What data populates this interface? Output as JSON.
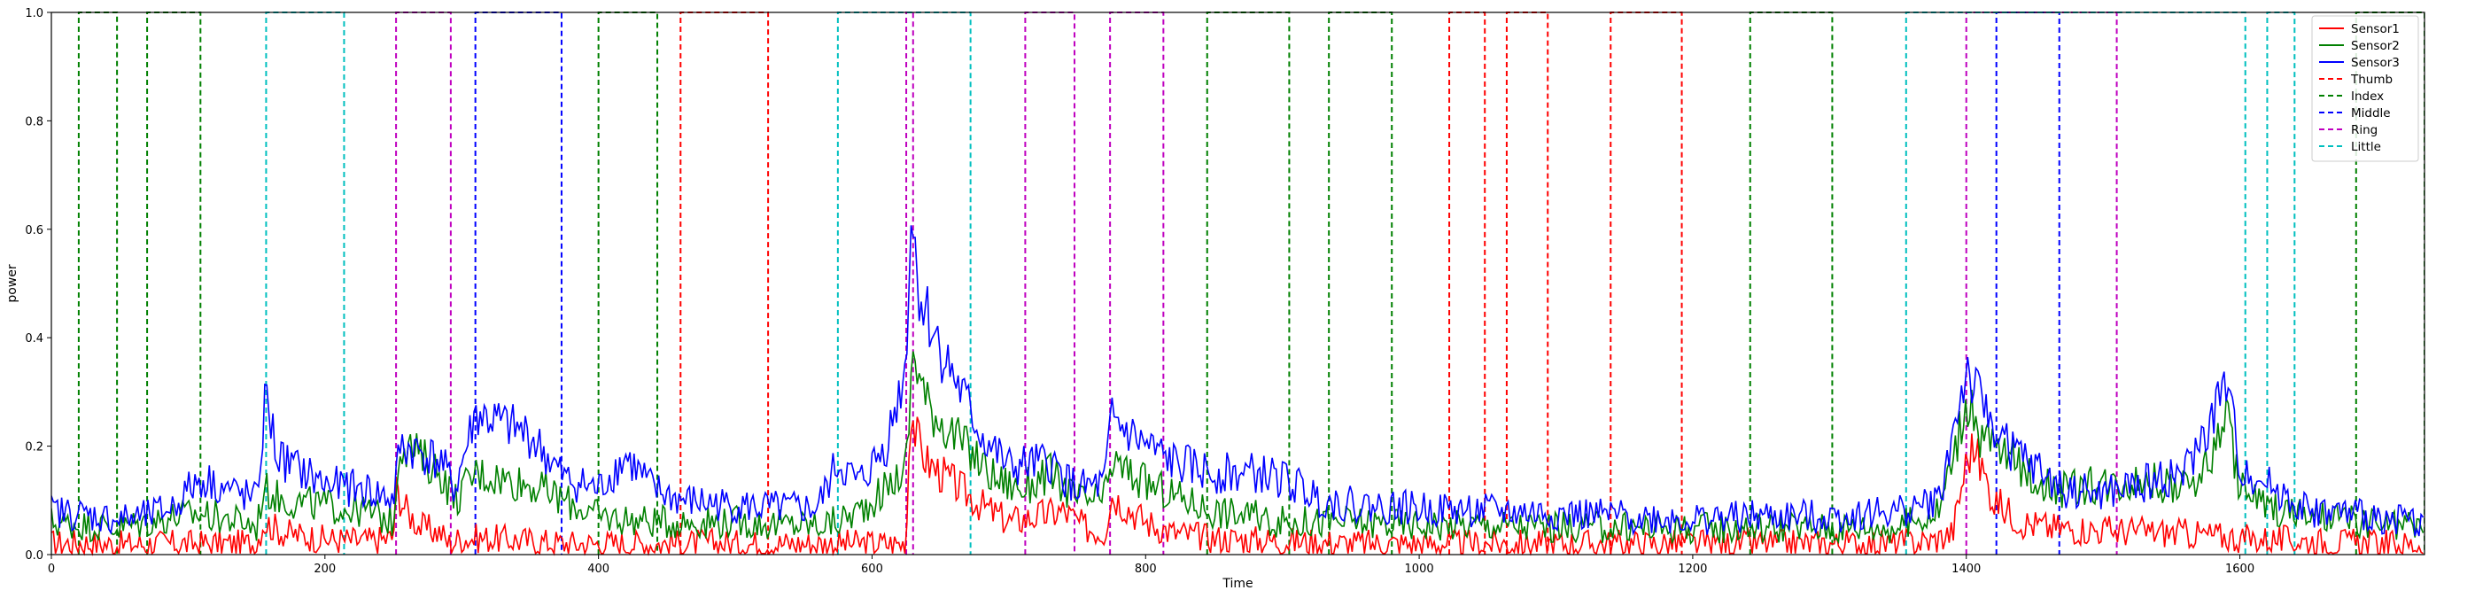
{
  "chart_data": {
    "type": "line",
    "title": "",
    "xlabel": "Time",
    "ylabel": "power",
    "xlim": [
      0,
      1735
    ],
    "ylim": [
      0,
      1.0
    ],
    "xticks": [
      0,
      200,
      400,
      600,
      800,
      1000,
      1200,
      1400,
      1600
    ],
    "yticks": [
      0.0,
      0.2,
      0.4,
      0.6,
      0.8,
      1.0
    ],
    "xtick_labels": [
      "0",
      "200",
      "400",
      "600",
      "800",
      "1000",
      "1200",
      "1400",
      "1600"
    ],
    "ytick_labels": [
      "0.0",
      "0.2",
      "0.4",
      "0.6",
      "0.8",
      "1.0"
    ],
    "grid": false,
    "legend_position": "top-right",
    "colors": {
      "Sensor1": "#ff0000",
      "Sensor2": "#008000",
      "Sensor3": "#0000ff",
      "Thumb": "#ff0000",
      "Index": "#008000",
      "Middle": "#0000ff",
      "Ring": "#bf00bf",
      "Little": "#00bfbf"
    },
    "sensor_series": [
      {
        "name": "Sensor1",
        "points": [
          [
            0,
            0.02
          ],
          [
            20,
            0.022
          ],
          [
            50,
            0.018
          ],
          [
            70,
            0.02
          ],
          [
            100,
            0.02
          ],
          [
            150,
            0.02
          ],
          [
            155,
            0.06
          ],
          [
            170,
            0.04
          ],
          [
            200,
            0.028
          ],
          [
            230,
            0.025
          ],
          [
            250,
            0.03
          ],
          [
            252,
            0.12
          ],
          [
            260,
            0.08
          ],
          [
            270,
            0.05
          ],
          [
            285,
            0.04
          ],
          [
            290,
            0.02
          ],
          [
            300,
            0.03
          ],
          [
            320,
            0.03
          ],
          [
            350,
            0.025
          ],
          [
            380,
            0.02
          ],
          [
            400,
            0.02
          ],
          [
            430,
            0.02
          ],
          [
            460,
            0.02
          ],
          [
            480,
            0.022
          ],
          [
            500,
            0.02
          ],
          [
            520,
            0.02
          ],
          [
            560,
            0.02
          ],
          [
            575,
            0.02
          ],
          [
            600,
            0.02
          ],
          [
            625,
            0.02
          ],
          [
            628,
            0.28
          ],
          [
            632,
            0.22
          ],
          [
            640,
            0.17
          ],
          [
            660,
            0.13
          ],
          [
            680,
            0.09
          ],
          [
            700,
            0.06
          ],
          [
            720,
            0.07
          ],
          [
            740,
            0.08
          ],
          [
            755,
            0.05
          ],
          [
            770,
            0.04
          ],
          [
            775,
            0.11
          ],
          [
            800,
            0.06
          ],
          [
            820,
            0.04
          ],
          [
            850,
            0.03
          ],
          [
            900,
            0.025
          ],
          [
            950,
            0.02
          ],
          [
            1000,
            0.02
          ],
          [
            1050,
            0.02
          ],
          [
            1100,
            0.02
          ],
          [
            1150,
            0.02
          ],
          [
            1200,
            0.02
          ],
          [
            1250,
            0.02
          ],
          [
            1300,
            0.02
          ],
          [
            1350,
            0.02
          ],
          [
            1375,
            0.025
          ],
          [
            1390,
            0.04
          ],
          [
            1400,
            0.17
          ],
          [
            1405,
            0.2
          ],
          [
            1420,
            0.1
          ],
          [
            1440,
            0.06
          ],
          [
            1460,
            0.05
          ],
          [
            1500,
            0.045
          ],
          [
            1550,
            0.04
          ],
          [
            1580,
            0.035
          ],
          [
            1600,
            0.03
          ],
          [
            1650,
            0.025
          ],
          [
            1700,
            0.02
          ],
          [
            1735,
            0.018
          ]
        ]
      },
      {
        "name": "Sensor2",
        "points": [
          [
            0,
            0.06
          ],
          [
            20,
            0.055
          ],
          [
            50,
            0.05
          ],
          [
            70,
            0.06
          ],
          [
            90,
            0.07
          ],
          [
            110,
            0.075
          ],
          [
            140,
            0.06
          ],
          [
            150,
            0.05
          ],
          [
            155,
            0.12
          ],
          [
            170,
            0.1
          ],
          [
            200,
            0.09
          ],
          [
            230,
            0.08
          ],
          [
            250,
            0.06
          ],
          [
            255,
            0.21
          ],
          [
            270,
            0.18
          ],
          [
            285,
            0.15
          ],
          [
            295,
            0.1
          ],
          [
            310,
            0.15
          ],
          [
            330,
            0.14
          ],
          [
            350,
            0.13
          ],
          [
            375,
            0.1
          ],
          [
            400,
            0.07
          ],
          [
            420,
            0.065
          ],
          [
            440,
            0.06
          ],
          [
            460,
            0.06
          ],
          [
            500,
            0.06
          ],
          [
            530,
            0.055
          ],
          [
            560,
            0.055
          ],
          [
            575,
            0.06
          ],
          [
            590,
            0.08
          ],
          [
            610,
            0.12
          ],
          [
            625,
            0.16
          ],
          [
            630,
            0.38
          ],
          [
            640,
            0.28
          ],
          [
            660,
            0.22
          ],
          [
            675,
            0.18
          ],
          [
            690,
            0.14
          ],
          [
            710,
            0.12
          ],
          [
            730,
            0.15
          ],
          [
            750,
            0.1
          ],
          [
            770,
            0.1
          ],
          [
            775,
            0.17
          ],
          [
            800,
            0.13
          ],
          [
            820,
            0.11
          ],
          [
            850,
            0.08
          ],
          [
            880,
            0.07
          ],
          [
            900,
            0.06
          ],
          [
            950,
            0.06
          ],
          [
            1000,
            0.055
          ],
          [
            1050,
            0.055
          ],
          [
            1100,
            0.05
          ],
          [
            1150,
            0.05
          ],
          [
            1200,
            0.05
          ],
          [
            1250,
            0.05
          ],
          [
            1300,
            0.05
          ],
          [
            1350,
            0.05
          ],
          [
            1380,
            0.08
          ],
          [
            1400,
            0.28
          ],
          [
            1410,
            0.22
          ],
          [
            1430,
            0.18
          ],
          [
            1450,
            0.14
          ],
          [
            1470,
            0.12
          ],
          [
            1500,
            0.13
          ],
          [
            1530,
            0.14
          ],
          [
            1560,
            0.12
          ],
          [
            1580,
            0.18
          ],
          [
            1590,
            0.27
          ],
          [
            1600,
            0.12
          ],
          [
            1620,
            0.09
          ],
          [
            1650,
            0.07
          ],
          [
            1700,
            0.055
          ],
          [
            1735,
            0.05
          ]
        ]
      },
      {
        "name": "Sensor3",
        "points": [
          [
            0,
            0.08
          ],
          [
            20,
            0.075
          ],
          [
            50,
            0.065
          ],
          [
            70,
            0.07
          ],
          [
            90,
            0.09
          ],
          [
            100,
            0.12
          ],
          [
            110,
            0.14
          ],
          [
            130,
            0.12
          ],
          [
            150,
            0.1
          ],
          [
            157,
            0.3
          ],
          [
            165,
            0.18
          ],
          [
            200,
            0.13
          ],
          [
            230,
            0.12
          ],
          [
            250,
            0.1
          ],
          [
            255,
            0.2
          ],
          [
            270,
            0.19
          ],
          [
            285,
            0.17
          ],
          [
            295,
            0.12
          ],
          [
            310,
            0.26
          ],
          [
            330,
            0.24
          ],
          [
            350,
            0.22
          ],
          [
            375,
            0.14
          ],
          [
            400,
            0.12
          ],
          [
            420,
            0.18
          ],
          [
            440,
            0.12
          ],
          [
            460,
            0.1
          ],
          [
            500,
            0.09
          ],
          [
            530,
            0.085
          ],
          [
            560,
            0.085
          ],
          [
            575,
            0.17
          ],
          [
            590,
            0.13
          ],
          [
            610,
            0.2
          ],
          [
            625,
            0.35
          ],
          [
            628,
            0.64
          ],
          [
            635,
            0.48
          ],
          [
            650,
            0.38
          ],
          [
            665,
            0.3
          ],
          [
            680,
            0.22
          ],
          [
            700,
            0.16
          ],
          [
            730,
            0.17
          ],
          [
            750,
            0.12
          ],
          [
            770,
            0.13
          ],
          [
            775,
            0.25
          ],
          [
            800,
            0.2
          ],
          [
            820,
            0.17
          ],
          [
            850,
            0.15
          ],
          [
            880,
            0.15
          ],
          [
            900,
            0.14
          ],
          [
            930,
            0.1
          ],
          [
            960,
            0.09
          ],
          [
            1000,
            0.085
          ],
          [
            1050,
            0.08
          ],
          [
            1100,
            0.075
          ],
          [
            1150,
            0.07
          ],
          [
            1200,
            0.065
          ],
          [
            1250,
            0.07
          ],
          [
            1300,
            0.07
          ],
          [
            1350,
            0.08
          ],
          [
            1380,
            0.1
          ],
          [
            1400,
            0.34
          ],
          [
            1410,
            0.28
          ],
          [
            1430,
            0.2
          ],
          [
            1450,
            0.16
          ],
          [
            1470,
            0.12
          ],
          [
            1500,
            0.11
          ],
          [
            1530,
            0.13
          ],
          [
            1560,
            0.15
          ],
          [
            1580,
            0.25
          ],
          [
            1590,
            0.32
          ],
          [
            1600,
            0.16
          ],
          [
            1620,
            0.13
          ],
          [
            1650,
            0.08
          ],
          [
            1700,
            0.07
          ],
          [
            1735,
            0.06
          ]
        ]
      }
    ],
    "finger_series": [
      {
        "name": "Thumb",
        "intervals": [
          [
            460,
            524
          ],
          [
            1022,
            1048
          ],
          [
            1064,
            1094
          ],
          [
            1140,
            1192
          ]
        ]
      },
      {
        "name": "Index",
        "intervals": [
          [
            20,
            48
          ],
          [
            70,
            109
          ],
          [
            400,
            443
          ],
          [
            845,
            905
          ],
          [
            934,
            980
          ],
          [
            1242,
            1302
          ],
          [
            1685,
            1735
          ]
        ]
      },
      {
        "name": "Middle",
        "intervals": [
          [
            310,
            373
          ],
          [
            1422,
            1468
          ]
        ]
      },
      {
        "name": "Ring",
        "intervals": [
          [
            252,
            292
          ],
          [
            625,
            630
          ],
          [
            712,
            748
          ],
          [
            774,
            813
          ],
          [
            1400,
            1510
          ]
        ]
      },
      {
        "name": "Little",
        "intervals": [
          [
            157,
            214
          ],
          [
            575,
            672
          ],
          [
            1356,
            1604
          ],
          [
            1620,
            1640
          ]
        ]
      }
    ],
    "legend": [
      "Sensor1",
      "Sensor2",
      "Sensor3",
      "Thumb",
      "Index",
      "Middle",
      "Ring",
      "Little"
    ]
  }
}
